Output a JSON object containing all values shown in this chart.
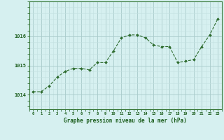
{
  "x": [
    0,
    1,
    2,
    3,
    4,
    5,
    6,
    7,
    8,
    9,
    10,
    11,
    12,
    13,
    14,
    15,
    16,
    17,
    18,
    19,
    20,
    21,
    22,
    23
  ],
  "y": [
    1014.1,
    1014.1,
    1014.3,
    1014.6,
    1014.8,
    1014.9,
    1014.9,
    1014.85,
    1015.1,
    1015.1,
    1015.5,
    1015.95,
    1016.05,
    1016.05,
    1015.95,
    1015.7,
    1015.65,
    1015.65,
    1015.1,
    1015.15,
    1015.2,
    1015.65,
    1016.05,
    1016.6
  ],
  "line_color": "#2d6b2d",
  "marker_color": "#2d6b2d",
  "bg_color": "#d6f0f0",
  "grid_color_major": "#a8caca",
  "grid_color_minor": "#c4e0e0",
  "xlabel": "Graphe pression niveau de la mer (hPa)",
  "xlabel_color": "#1a5c1a",
  "tick_color": "#1a5c1a",
  "spine_color": "#3a7a3a",
  "ylim": [
    1013.5,
    1017.2
  ],
  "yticks": [
    1014,
    1015,
    1016
  ],
  "xticks": [
    0,
    1,
    2,
    3,
    4,
    5,
    6,
    7,
    8,
    9,
    10,
    11,
    12,
    13,
    14,
    15,
    16,
    17,
    18,
    19,
    20,
    21,
    22,
    23
  ]
}
